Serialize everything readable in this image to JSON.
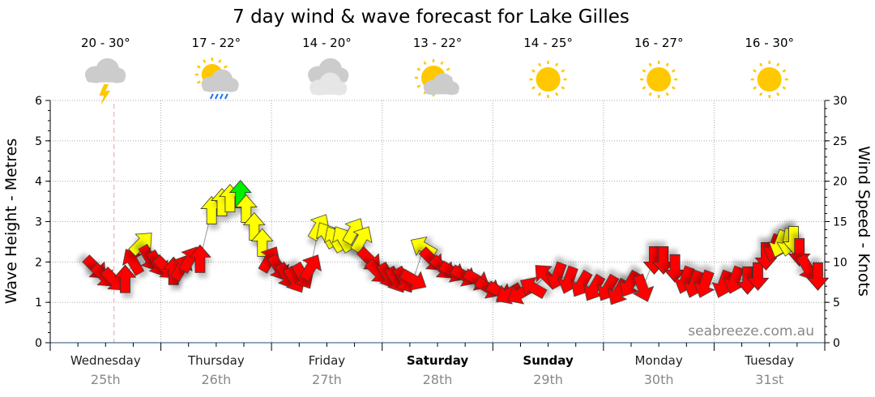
{
  "chart_data": {
    "type": "scatter",
    "title": "7 day wind & wave forecast for Lake Gilles",
    "ylabel_left": "Wave Height - Metres",
    "ylabel_right": "Wind Speed - Knots",
    "ylim_left": [
      0,
      6
    ],
    "ylim_right": [
      0,
      30
    ],
    "yticks_left": [
      "0",
      "1",
      "2",
      "3",
      "4",
      "5",
      "6"
    ],
    "yticks_right": [
      "0",
      "5",
      "10",
      "15",
      "20",
      "25",
      "30"
    ],
    "grid": true,
    "watermark": "seabreeze.com.au",
    "colors": {
      "red": "#ff0000",
      "yellow": "#ffff00",
      "green": "#00ee00",
      "now_line": "#f4a0a0"
    },
    "now": "25th 13:50",
    "days": [
      {
        "name": "Wednesday",
        "date": "25th",
        "bold": false,
        "temp": "20 - 30°",
        "icon": "thunderstorm-icon"
      },
      {
        "name": "Thursday",
        "date": "26th",
        "bold": false,
        "temp": "17 - 22°",
        "icon": "sun-cloud-rain-icon"
      },
      {
        "name": "Friday",
        "date": "27th",
        "bold": false,
        "temp": "14 - 20°",
        "icon": "cloudy-icon"
      },
      {
        "name": "Saturday",
        "date": "28th",
        "bold": true,
        "temp": "13 - 22°",
        "icon": "partly-cloudy-icon"
      },
      {
        "name": "Sunday",
        "date": "29th",
        "bold": true,
        "temp": "14 - 25°",
        "icon": "sunny-icon"
      },
      {
        "name": "Monday",
        "date": "30th",
        "bold": false,
        "temp": "16 - 27°",
        "icon": "sunny-icon"
      },
      {
        "name": "Tuesday",
        "date": "31st",
        "bold": false,
        "temp": "16 - 30°",
        "icon": "sunny-icon"
      }
    ],
    "wind": [
      {
        "t": "25th 09:45",
        "knots": 9.3,
        "dir": 135,
        "c": "red"
      },
      {
        "t": "25th 11:30",
        "knots": 8.3,
        "dir": 135,
        "c": "red"
      },
      {
        "t": "25th 13:45",
        "knots": 7.8,
        "dir": 135,
        "c": "red"
      },
      {
        "t": "25th 16:15",
        "knots": 7.8,
        "dir": 0,
        "c": "red"
      },
      {
        "t": "25th 18:00",
        "knots": 10,
        "dir": 330,
        "c": "red"
      },
      {
        "t": "25th 19:45",
        "knots": 12.3,
        "dir": 45,
        "c": "yellow"
      },
      {
        "t": "25th 21:30",
        "knots": 10.5,
        "dir": 150,
        "c": "red"
      },
      {
        "t": "25th 23:15",
        "knots": 9.8,
        "dir": 150,
        "c": "red"
      },
      {
        "t": "26th 01:00",
        "knots": 9.3,
        "dir": 135,
        "c": "red"
      },
      {
        "t": "26th 02:45",
        "knots": 8.8,
        "dir": 0,
        "c": "red"
      },
      {
        "t": "26th 04:30",
        "knots": 9.3,
        "dir": 30,
        "c": "red"
      },
      {
        "t": "26th 06:15",
        "knots": 10.3,
        "dir": 30,
        "c": "red"
      },
      {
        "t": "26th 08:30",
        "knots": 10.3,
        "dir": 0,
        "c": "red"
      },
      {
        "t": "26th 11:00",
        "knots": 16.3,
        "dir": 0,
        "c": "yellow"
      },
      {
        "t": "26th 13:15",
        "knots": 17.3,
        "dir": 0,
        "c": "yellow"
      },
      {
        "t": "26th 15:00",
        "knots": 17.8,
        "dir": 0,
        "c": "yellow"
      },
      {
        "t": "26th 17:15",
        "knots": 18.3,
        "dir": 0,
        "c": "green"
      },
      {
        "t": "26th 18:30",
        "knots": 16.5,
        "dir": 0,
        "c": "yellow"
      },
      {
        "t": "26th 20:15",
        "knots": 14.3,
        "dir": 0,
        "c": "yellow"
      },
      {
        "t": "26th 22:00",
        "knots": 12.3,
        "dir": 0,
        "c": "yellow"
      },
      {
        "t": "26th 23:30",
        "knots": 10.3,
        "dir": 30,
        "c": "red"
      },
      {
        "t": "27th 01:30",
        "knots": 9.3,
        "dir": 150,
        "c": "red"
      },
      {
        "t": "27th 03:15",
        "knots": 8.3,
        "dir": 150,
        "c": "red"
      },
      {
        "t": "27th 05:00",
        "knots": 7.8,
        "dir": 150,
        "c": "red"
      },
      {
        "t": "27th 06:45",
        "knots": 8.3,
        "dir": 150,
        "c": "red"
      },
      {
        "t": "27th 08:30",
        "knots": 9.3,
        "dir": 30,
        "c": "red"
      },
      {
        "t": "27th 10:15",
        "knots": 14.3,
        "dir": 30,
        "c": "yellow"
      },
      {
        "t": "27th 12:00",
        "knots": 13.3,
        "dir": 330,
        "c": "yellow"
      },
      {
        "t": "27th 13:45",
        "knots": 12.8,
        "dir": 330,
        "c": "yellow"
      },
      {
        "t": "27th 15:30",
        "knots": 12.8,
        "dir": 330,
        "c": "yellow"
      },
      {
        "t": "27th 17:45",
        "knots": 13.8,
        "dir": 30,
        "c": "yellow"
      },
      {
        "t": "27th 19:30",
        "knots": 12.8,
        "dir": 30,
        "c": "yellow"
      },
      {
        "t": "27th 21:15",
        "knots": 10.3,
        "dir": 135,
        "c": "red"
      },
      {
        "t": "27th 23:00",
        "knots": 8.8,
        "dir": 135,
        "c": "red"
      },
      {
        "t": "28th 01:15",
        "knots": 8.3,
        "dir": 150,
        "c": "red"
      },
      {
        "t": "28th 03:00",
        "knots": 7.8,
        "dir": 150,
        "c": "red"
      },
      {
        "t": "28th 04:45",
        "knots": 7.8,
        "dir": 150,
        "c": "red"
      },
      {
        "t": "28th 06:45",
        "knots": 7.8,
        "dir": 120,
        "c": "red"
      },
      {
        "t": "28th 09:00",
        "knots": 11.8,
        "dir": 300,
        "c": "yellow"
      },
      {
        "t": "28th 10:45",
        "knots": 10.3,
        "dir": 135,
        "c": "red"
      },
      {
        "t": "28th 13:00",
        "knots": 9.3,
        "dir": 135,
        "c": "red"
      },
      {
        "t": "28th 15:15",
        "knots": 8.8,
        "dir": 120,
        "c": "red"
      },
      {
        "t": "28th 17:45",
        "knots": 8.3,
        "dir": 120,
        "c": "red"
      },
      {
        "t": "28th 20:30",
        "knots": 7.8,
        "dir": 120,
        "c": "red"
      },
      {
        "t": "28th 23:00",
        "knots": 6.8,
        "dir": 120,
        "c": "red"
      },
      {
        "t": "29th 01:30",
        "knots": 6.3,
        "dir": 120,
        "c": "red"
      },
      {
        "t": "29th 03:30",
        "knots": 6.1,
        "dir": 240,
        "c": "red"
      },
      {
        "t": "29th 06:00",
        "knots": 6.1,
        "dir": 240,
        "c": "red"
      },
      {
        "t": "29th 08:45",
        "knots": 6.8,
        "dir": 300,
        "c": "red"
      },
      {
        "t": "29th 11:30",
        "knots": 8.3,
        "dir": 315,
        "c": "red"
      },
      {
        "t": "29th 14:00",
        "knots": 8.3,
        "dir": 200,
        "c": "red"
      },
      {
        "t": "29th 16:30",
        "knots": 7.8,
        "dir": 200,
        "c": "red"
      },
      {
        "t": "29th 19:15",
        "knots": 7.3,
        "dir": 210,
        "c": "red"
      },
      {
        "t": "29th 22:00",
        "knots": 6.8,
        "dir": 210,
        "c": "red"
      },
      {
        "t": "30th 01:00",
        "knots": 6.8,
        "dir": 210,
        "c": "red"
      },
      {
        "t": "30th 03:15",
        "knots": 6.3,
        "dir": 210,
        "c": "red"
      },
      {
        "t": "30th 05:45",
        "knots": 7.3,
        "dir": 210,
        "c": "red"
      },
      {
        "t": "30th 08:30",
        "knots": 6.8,
        "dir": 160,
        "c": "red"
      },
      {
        "t": "30th 11:00",
        "knots": 10.3,
        "dir": 180,
        "c": "red"
      },
      {
        "t": "30th 13:00",
        "knots": 10.3,
        "dir": 180,
        "c": "red"
      },
      {
        "t": "30th 15:30",
        "knots": 9.3,
        "dir": 180,
        "c": "red"
      },
      {
        "t": "30th 17:45",
        "knots": 7.8,
        "dir": 200,
        "c": "red"
      },
      {
        "t": "30th 19:45",
        "knots": 7.3,
        "dir": 200,
        "c": "red"
      },
      {
        "t": "30th 22:00",
        "knots": 7.3,
        "dir": 200,
        "c": "red"
      },
      {
        "t": "31st 02:00",
        "knots": 7.3,
        "dir": 200,
        "c": "red"
      },
      {
        "t": "31st 04:30",
        "knots": 7.8,
        "dir": 200,
        "c": "red"
      },
      {
        "t": "31st 07:15",
        "knots": 7.8,
        "dir": 180,
        "c": "red"
      },
      {
        "t": "31st 09:30",
        "knots": 8.3,
        "dir": 180,
        "c": "red"
      },
      {
        "t": "31st 11:15",
        "knots": 10.8,
        "dir": 180,
        "c": "red"
      },
      {
        "t": "31st 13:00",
        "knots": 11.8,
        "dir": 200,
        "c": "red"
      },
      {
        "t": "31st 14:15",
        "knots": 12.3,
        "dir": 200,
        "c": "yellow"
      },
      {
        "t": "31st 16:00",
        "knots": 12.5,
        "dir": 190,
        "c": "yellow"
      },
      {
        "t": "31st 17:15",
        "knots": 12.8,
        "dir": 180,
        "c": "yellow"
      },
      {
        "t": "31st 18:30",
        "knots": 11.3,
        "dir": 180,
        "c": "red"
      },
      {
        "t": "31st 20:15",
        "knots": 9.3,
        "dir": 150,
        "c": "red"
      },
      {
        "t": "31st 22:30",
        "knots": 8.3,
        "dir": 180,
        "c": "red"
      }
    ]
  }
}
